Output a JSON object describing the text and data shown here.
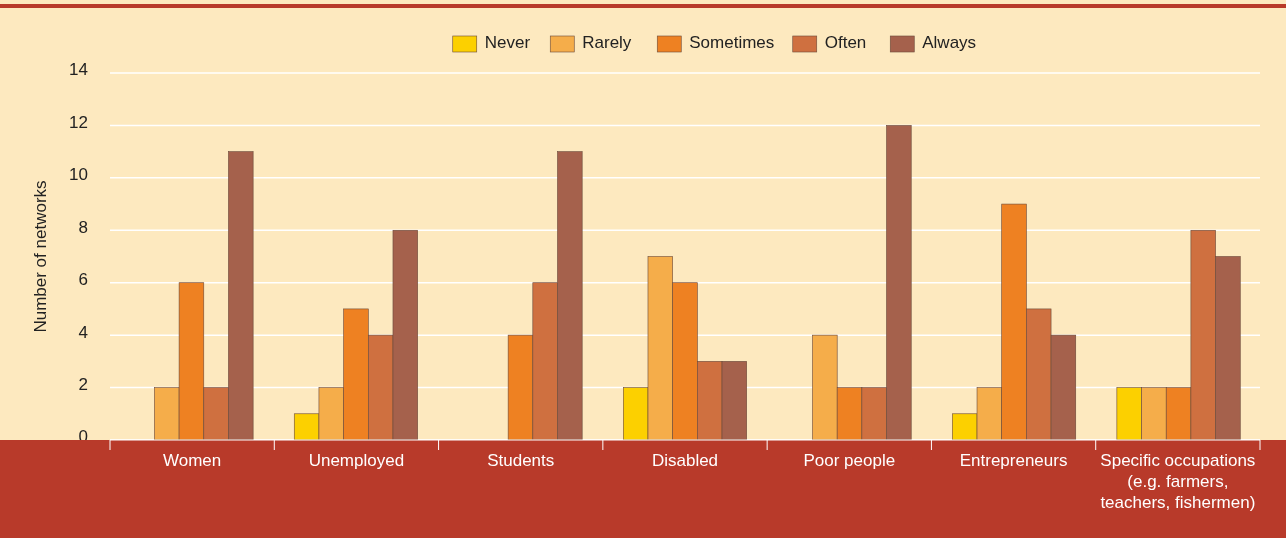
{
  "chart_data": {
    "type": "bar",
    "ylabel": "Number of networks",
    "categories": [
      "Women",
      "Unemployed",
      "Students",
      "Disabled",
      "Poor people",
      "Entrepreneurs",
      "Specific occupations (e.g. farmers, teachers, fishermen)"
    ],
    "series": [
      {
        "name": "Never",
        "color": "#fcd000",
        "values": [
          0,
          1,
          0,
          2,
          0,
          1,
          2
        ]
      },
      {
        "name": "Rarely",
        "color": "#f5ad4a",
        "values": [
          2,
          2,
          0,
          7,
          4,
          2,
          2
        ]
      },
      {
        "name": "Sometimes",
        "color": "#ee8122",
        "values": [
          6,
          5,
          4,
          6,
          2,
          9,
          2
        ]
      },
      {
        "name": "Often",
        "color": "#cf7040",
        "values": [
          2,
          4,
          6,
          3,
          2,
          5,
          8
        ]
      },
      {
        "name": "Always",
        "color": "#a5614c",
        "values": [
          11,
          8,
          11,
          3,
          12,
          4,
          7
        ]
      }
    ],
    "ylim": [
      0,
      14
    ],
    "yticks": [
      0,
      2,
      4,
      6,
      8,
      10,
      12,
      14
    ],
    "grid": "y",
    "legend": "top"
  }
}
